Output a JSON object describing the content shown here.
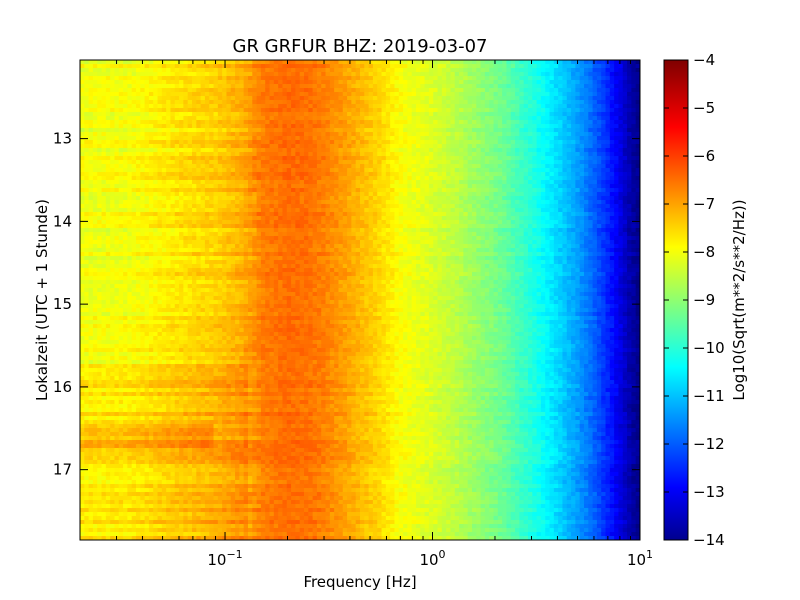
{
  "chart_data": {
    "type": "heatmap",
    "title": "GR GRFUR BHZ: 2019-03-07",
    "xlabel": "Frequency [Hz]",
    "ylabel": "Lokalzeit (UTC + 1 Stunde)",
    "xscale": "log",
    "xlim": [
      0.02,
      10
    ],
    "ylim": [
      17.85,
      12.05
    ],
    "x_ticks": [
      {
        "value": 0.1,
        "base": "10",
        "exp": "−1"
      },
      {
        "value": 1,
        "base": "10",
        "exp": "0"
      },
      {
        "value": 10,
        "base": "10",
        "exp": "1"
      }
    ],
    "y_ticks": [
      {
        "value": 13,
        "label": "13"
      },
      {
        "value": 14,
        "label": "14"
      },
      {
        "value": 15,
        "label": "15"
      },
      {
        "value": 16,
        "label": "16"
      },
      {
        "value": 17,
        "label": "17"
      }
    ],
    "colorbar": {
      "label": "Log10(Sqrt(m**2/s**2/Hz))",
      "range": [
        -14,
        -4
      ],
      "colormap": "jet",
      "ticks": [
        {
          "value": -4,
          "label": "−4"
        },
        {
          "value": -5,
          "label": "−5"
        },
        {
          "value": -6,
          "label": "−6"
        },
        {
          "value": -7,
          "label": "−7"
        },
        {
          "value": -8,
          "label": "−8"
        },
        {
          "value": -9,
          "label": "−9"
        },
        {
          "value": -10,
          "label": "−10"
        },
        {
          "value": -11,
          "label": "−11"
        },
        {
          "value": -12,
          "label": "−12"
        },
        {
          "value": -13,
          "label": "−13"
        },
        {
          "value": -14,
          "label": "−14"
        }
      ]
    },
    "spectrum_profile": {
      "frequency_hz": [
        0.02,
        0.035,
        0.06,
        0.09,
        0.12,
        0.15,
        0.2,
        0.25,
        0.3,
        0.4,
        0.55,
        0.7,
        1.0,
        1.3,
        1.7,
        2.2,
        3.0,
        4.0,
        5.0,
        6.0,
        7.0,
        8.0,
        9.0,
        10.0
      ],
      "log10_amplitude": [
        -7.9,
        -7.85,
        -7.5,
        -7.3,
        -7.0,
        -6.5,
        -6.3,
        -6.35,
        -6.5,
        -6.9,
        -7.35,
        -7.8,
        -8.1,
        -8.4,
        -8.8,
        -9.2,
        -9.9,
        -10.6,
        -11.2,
        -11.8,
        -12.4,
        -13.0,
        -13.6,
        -13.9
      ]
    },
    "grid": false
  }
}
